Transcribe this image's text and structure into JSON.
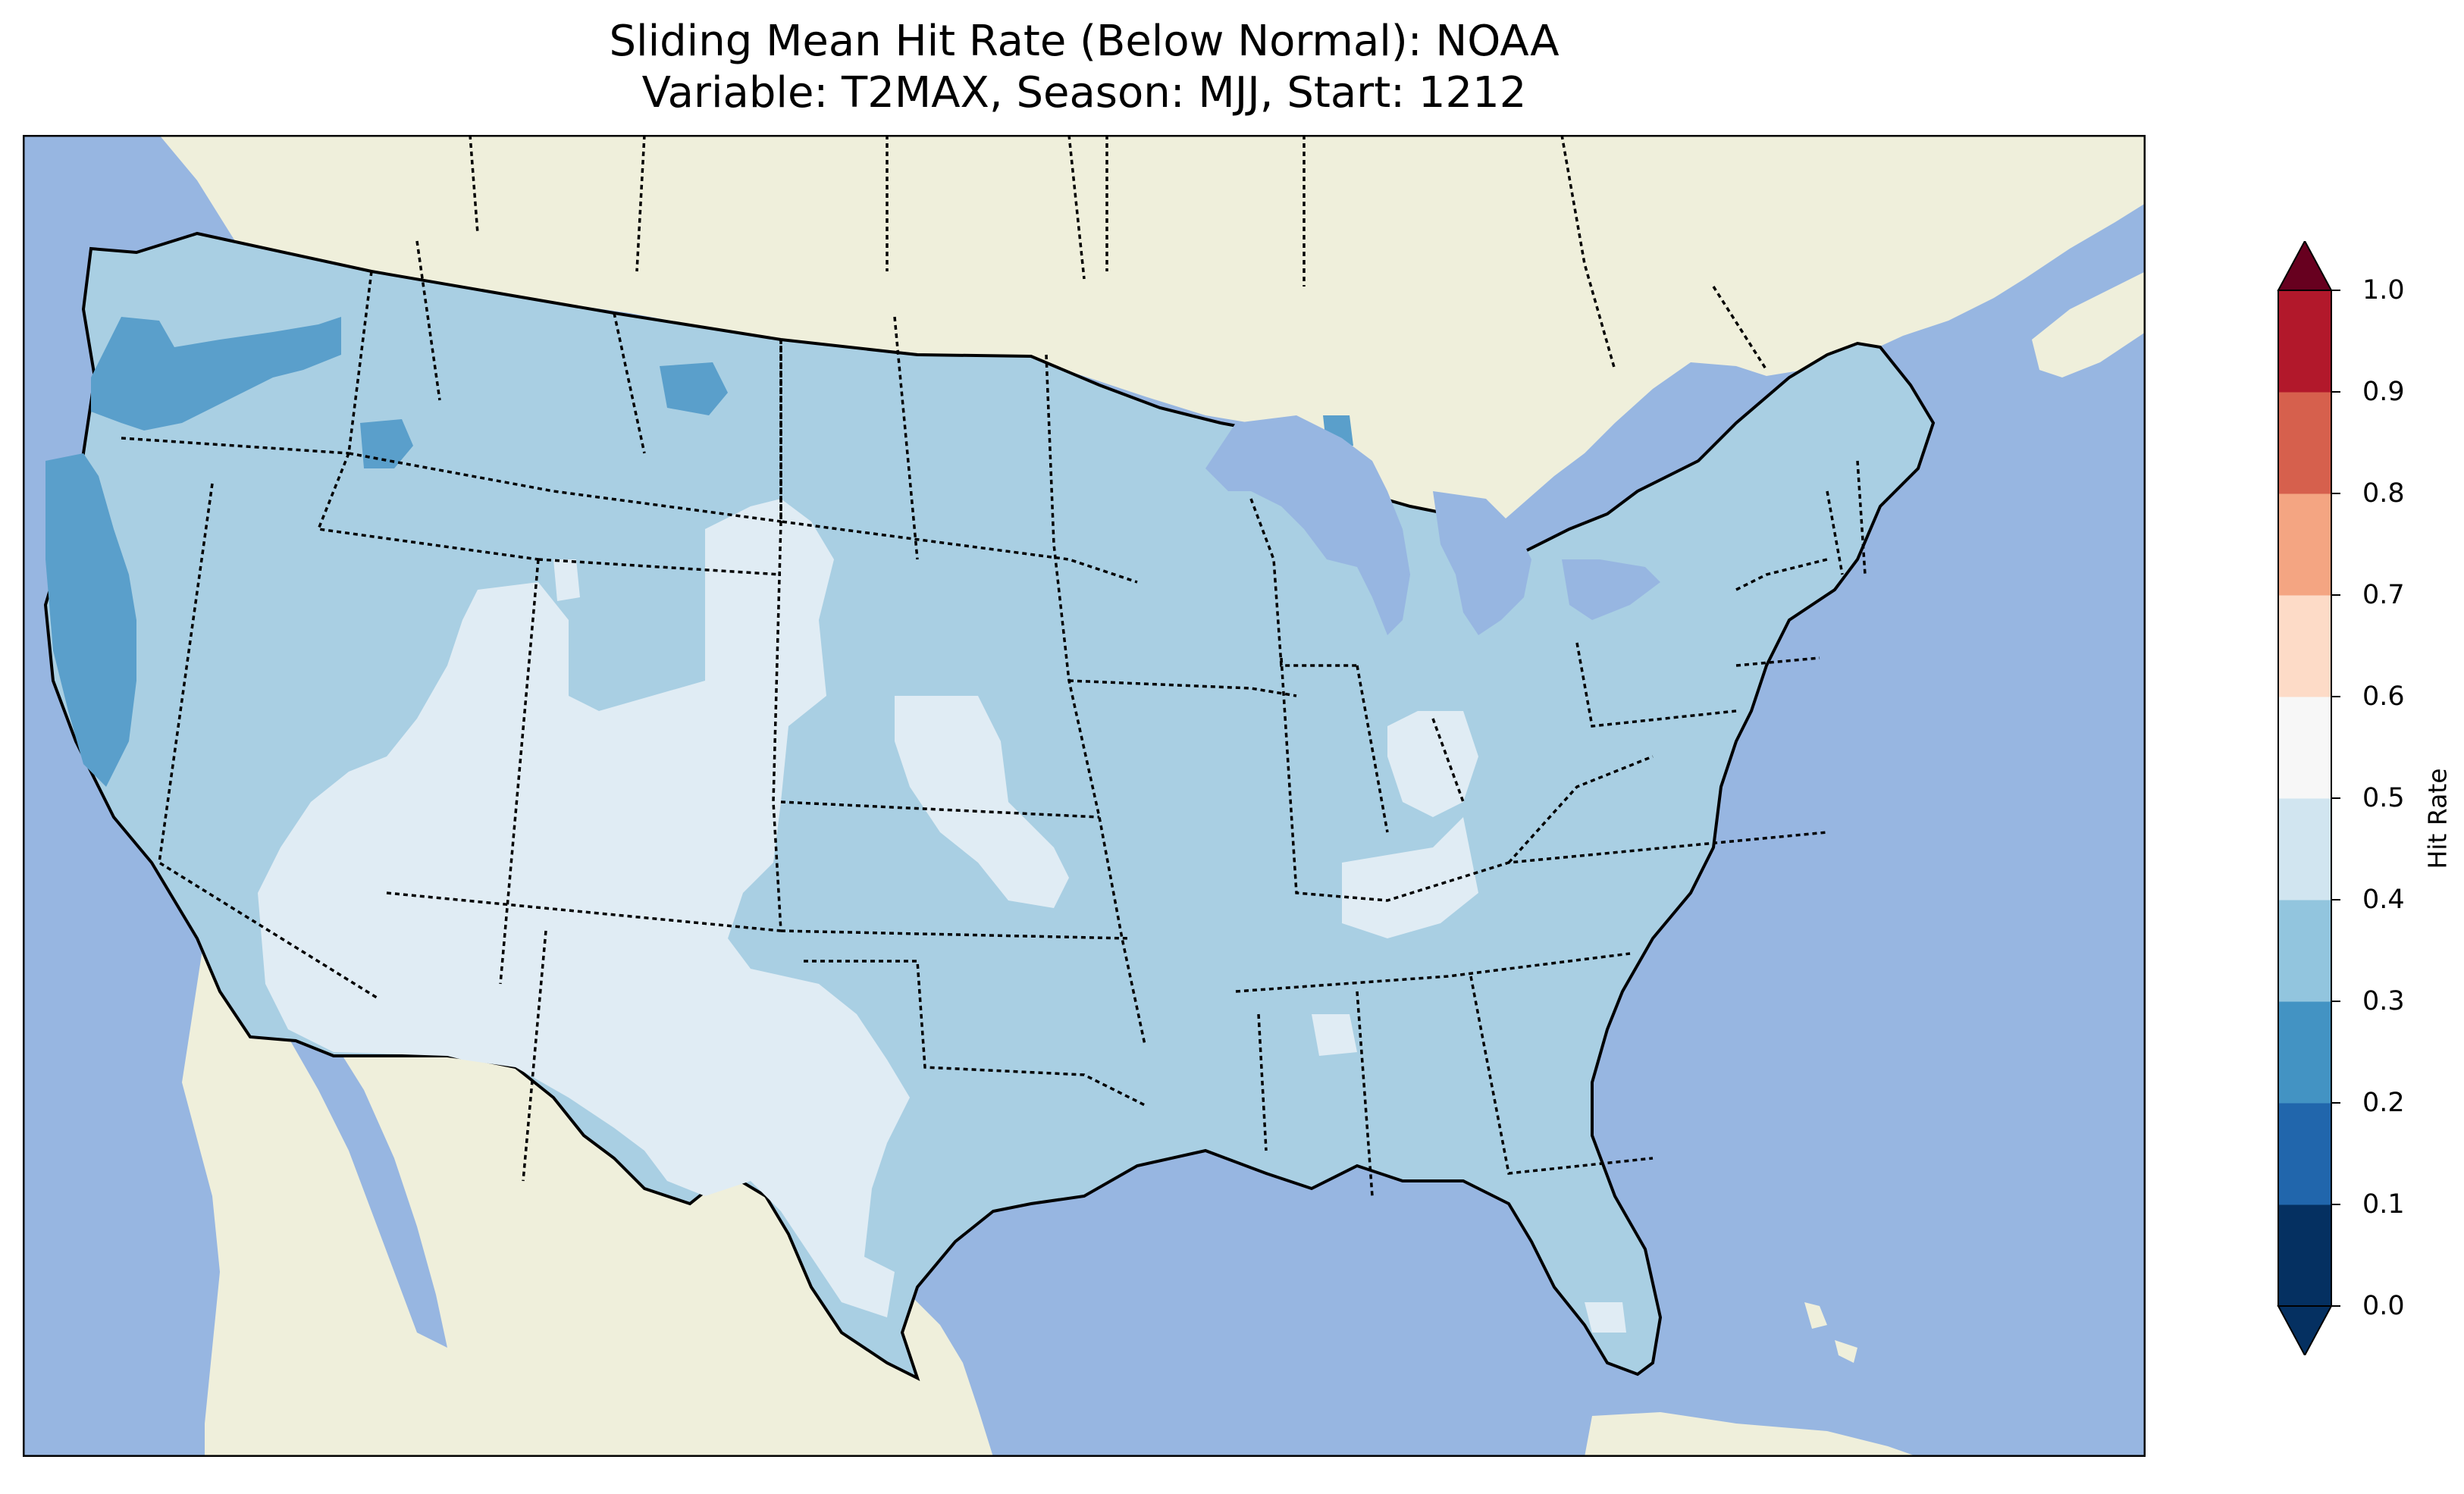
{
  "title": {
    "line1": "Sliding Mean Hit Rate (Below Normal): NOAA",
    "line2": "Variable: T2MAX, Season: MJJ, Start: 1212"
  },
  "colorbar": {
    "label": "Hit Rate",
    "ticks": [
      "0.0",
      "0.1",
      "0.2",
      "0.3",
      "0.4",
      "0.5",
      "0.6",
      "0.7",
      "0.8",
      "0.9",
      "1.0"
    ],
    "levels": [
      0.0,
      0.1,
      0.2,
      0.3,
      0.4,
      0.5,
      0.6,
      0.7,
      0.8,
      0.9,
      1.0
    ],
    "colors": [
      "#053061",
      "#2166ac",
      "#4393c3",
      "#92c5de",
      "#d1e5f0",
      "#f7f7f7",
      "#fddbc7",
      "#f4a582",
      "#d6604d",
      "#b2182b",
      "#67001f"
    ],
    "extend": "both",
    "under_color": "#053061",
    "over_color": "#67001f"
  },
  "map_style": {
    "ocean": "#97b6e1",
    "land_outside": "#efefdb",
    "hit_0_2_to_0_3": "#5a9fcb",
    "hit_0_3_to_0_4": "#a9cfe3",
    "hit_0_4_to_0_5": "#e0ecf4"
  }
}
